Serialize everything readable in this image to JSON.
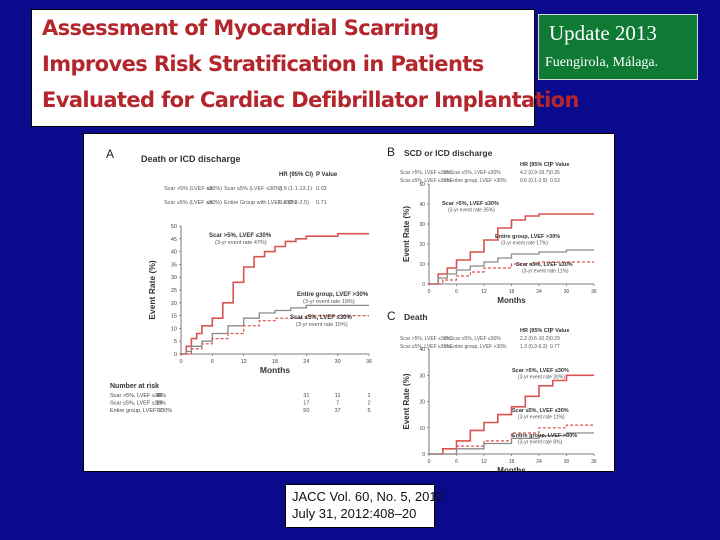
{
  "title": {
    "lines": [
      "Assessment of Myocardial Scarring",
      "Improves Risk Stratification in Patients",
      "Evaluated for Cardiac Defibrillator Implantation"
    ]
  },
  "update_box": {
    "title": "Update 2013",
    "subtitle": "Fuengirola, Málaga."
  },
  "citation": {
    "line1": "JACC Vol. 60, No. 5, 2012",
    "line2": "July 31, 2012:408–20"
  },
  "colors": {
    "background": "#0a0a8c",
    "title_text": "#b3262c",
    "update_box": "#0f7a33",
    "scar_gt5": "#d9534f",
    "entire": "#8a8a8a",
    "scar_le5": "#d9534f"
  },
  "chart_data": [
    {
      "panel": "A",
      "type": "line",
      "title": "Death or ICD discharge",
      "xlabel": "Months",
      "ylabel": "Event Rate (%)",
      "xlim": [
        0,
        36
      ],
      "ylim": [
        0,
        50
      ],
      "xticks": [
        "0",
        "6",
        "12",
        "18",
        "24",
        "30",
        "36"
      ],
      "yticks": [
        "0",
        "5",
        "10",
        "15",
        "20",
        "25",
        "30",
        "35",
        "40",
        "45",
        "50"
      ],
      "hr_table": {
        "headers": [
          "HR (95% CI)",
          "P Value"
        ],
        "rows": [
          {
            "a": "Scar >5% (LVEF ≤30%)",
            "vs": "vs.",
            "b": "Scar ≤5% (LVEF ≤30%)",
            "hr": "3.9 (1.1-13.1)",
            "p": "0.03"
          },
          {
            "a": "Scar ≤5% (LVEF ≤30%)",
            "vs": "vs.",
            "b": "Entire Group with LVEF >30%",
            "hr": "0.8 (0.2-2.5)",
            "p": "0.71"
          }
        ]
      },
      "series": [
        {
          "name": "Scar >5%, LVEF ≤30%",
          "note": "(3-yr event rate 47%)",
          "x": [
            0,
            1,
            2,
            3,
            4,
            6,
            8,
            10,
            12,
            14,
            16,
            18,
            20,
            22,
            24,
            27,
            30,
            33,
            36
          ],
          "y": [
            0,
            3,
            6,
            8,
            11,
            14,
            20,
            28,
            34,
            38,
            40,
            42,
            44,
            45,
            46,
            46,
            47,
            47,
            47
          ]
        },
        {
          "name": "Entire group, LVEF >30%",
          "note": "(3-yr event rate 19%)",
          "x": [
            0,
            1,
            2,
            4,
            6,
            9,
            12,
            15,
            18,
            21,
            24,
            30,
            36
          ],
          "y": [
            0,
            1,
            3,
            5,
            8,
            11,
            14,
            16,
            17,
            18,
            19,
            19,
            19
          ]
        },
        {
          "name": "Scar ≤5%, LVEF ≤30%",
          "note": "(3-yr event rate 15%)",
          "x": [
            0,
            2,
            4,
            6,
            9,
            12,
            15,
            18,
            24,
            30,
            36
          ],
          "y": [
            0,
            2,
            4,
            6,
            8,
            11,
            13,
            14,
            15,
            15,
            15
          ]
        }
      ],
      "at_risk": {
        "heading": "Number at risk",
        "rows": [
          {
            "label": "Scar >5%, LVEF ≤30%",
            "values": [
              "46",
              "31",
              "11",
              "1"
            ]
          },
          {
            "label": "Scar ≤5%, LVEF ≤30%",
            "values": [
              "19",
              "17",
              "7",
              "2"
            ]
          },
          {
            "label": "Entire group, LVEF >30%",
            "values": [
              "72",
              "50",
              "37",
              "5"
            ]
          }
        ]
      }
    },
    {
      "panel": "B",
      "type": "line",
      "title": "SCD or ICD discharge",
      "xlabel": "Months",
      "ylabel": "Event Rate (%)",
      "xlim": [
        0,
        36
      ],
      "ylim": [
        0,
        50
      ],
      "xticks": [
        "0",
        "6",
        "12",
        "18",
        "24",
        "30",
        "36"
      ],
      "yticks": [
        "0",
        "10",
        "20",
        "30",
        "40",
        "50"
      ],
      "hr_table": {
        "headers": [
          "HR (95% CI)",
          "P Value"
        ],
        "rows": [
          {
            "a": "Scar >5%, LVEF ≤30%",
            "vs": "vs.",
            "b": "Scar ≤5%, LVEF ≤30%",
            "hr": "4.2 (0.9-19.7)",
            "p": "0.35"
          },
          {
            "a": "Scar ≤5%, LVEF ≤30%",
            "vs": "vs.",
            "b": "Entire group, LVEF >30%",
            "hr": "0.6 (0.1-2.9)",
            "p": "0.53"
          }
        ]
      },
      "series": [
        {
          "name": "Scar >5%, LVEF ≤30%",
          "note": "(3-yr event rate 35%)",
          "x": [
            0,
            2,
            4,
            6,
            9,
            12,
            15,
            18,
            21,
            24,
            30,
            36
          ],
          "y": [
            0,
            5,
            8,
            12,
            16,
            22,
            28,
            32,
            34,
            35,
            35,
            35
          ]
        },
        {
          "name": "Entire group, LVEF >30%",
          "note": "(3-yr event rate 17%)",
          "x": [
            0,
            2,
            4,
            6,
            9,
            12,
            15,
            18,
            24,
            30,
            36
          ],
          "y": [
            0,
            3,
            5,
            7,
            9,
            11,
            13,
            15,
            16,
            17,
            17
          ]
        },
        {
          "name": "Scar ≤5%, LVEF ≤30%",
          "note": "(3-yr event rate 11%)",
          "x": [
            0,
            3,
            6,
            9,
            12,
            18,
            24,
            30,
            36
          ],
          "y": [
            0,
            2,
            4,
            6,
            8,
            10,
            11,
            11,
            11
          ]
        }
      ]
    },
    {
      "panel": "C",
      "type": "line",
      "title": "Death",
      "xlabel": "Months",
      "ylabel": "Event Rate (%)",
      "xlim": [
        0,
        36
      ],
      "ylim": [
        0,
        40
      ],
      "xticks": [
        "0",
        "6",
        "12",
        "18",
        "24",
        "30",
        "36"
      ],
      "yticks": [
        "0",
        "10",
        "20",
        "30",
        "40"
      ],
      "hr_table": {
        "headers": [
          "HR (95% CI)",
          "P Value"
        ],
        "rows": [
          {
            "a": "Scar >5%, LVEF ≤30%",
            "vs": "vs.",
            "b": "Scar ≤5%, LVEF ≤30%",
            "hr": "2.2 (0.5-10.2)",
            "p": "0.29"
          },
          {
            "a": "Scar ≤5%, LVEF ≤30%",
            "vs": "vs.",
            "b": "Entire group, LVEF >30%",
            "hr": "1.3 (0.3-6.3)",
            "p": "0.77"
          }
        ]
      },
      "series": [
        {
          "name": "Scar >5%, LVEF ≤30%",
          "note": "(3-yr event rate 30%)",
          "x": [
            0,
            3,
            6,
            9,
            12,
            15,
            18,
            21,
            24,
            27,
            30,
            36
          ],
          "y": [
            0,
            2,
            5,
            9,
            12,
            15,
            18,
            22,
            26,
            28,
            30,
            30
          ]
        },
        {
          "name": "Scar ≤5%, LVEF ≤30%",
          "note": "(3-yr event rate 11%)",
          "x": [
            0,
            6,
            12,
            18,
            24,
            30,
            36
          ],
          "y": [
            0,
            3,
            5,
            8,
            10,
            11,
            11
          ]
        },
        {
          "name": "Entire group, LVEF >30%",
          "note": "(3-yr event rate 8%)",
          "x": [
            0,
            6,
            12,
            18,
            24,
            30,
            36
          ],
          "y": [
            0,
            2,
            4,
            6,
            7,
            8,
            8
          ]
        }
      ]
    }
  ]
}
